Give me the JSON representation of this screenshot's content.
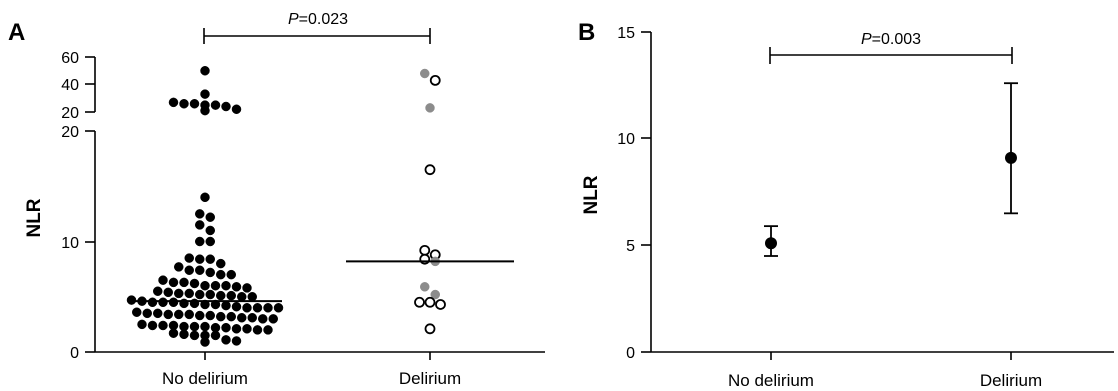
{
  "chart_data": [
    {
      "type": "scatter",
      "panel_label": "A",
      "ylabel": "NLR",
      "categories": [
        "No delirium",
        "Delirium"
      ],
      "y_segments": [
        {
          "ylim": [
            0,
            20
          ],
          "ticks": [
            0,
            10,
            20
          ]
        },
        {
          "ylim": [
            20,
            60
          ],
          "ticks": [
            20,
            40,
            60
          ]
        }
      ],
      "series": [
        {
          "category": "No delirium",
          "marker": "filled-black",
          "values": [
            50,
            33,
            27,
            26,
            26,
            25,
            25,
            24,
            22,
            21,
            14.0,
            12.5,
            12.2,
            11.5,
            11.0,
            10.0,
            10.0,
            8.5,
            8.4,
            8.4,
            8.0,
            7.7,
            7.4,
            7.4,
            7.2,
            7.0,
            7.0,
            6.5,
            6.3,
            6.3,
            6.2,
            6.0,
            6.0,
            6.0,
            5.9,
            5.8,
            5.5,
            5.4,
            5.3,
            5.3,
            5.2,
            5.2,
            5.1,
            5.1,
            5.0,
            5.0,
            4.7,
            4.6,
            4.5,
            4.5,
            4.5,
            4.4,
            4.4,
            4.3,
            4.3,
            4.2,
            4.1,
            4.0,
            4.0,
            4.0,
            4.0,
            3.6,
            3.5,
            3.5,
            3.4,
            3.4,
            3.4,
            3.3,
            3.3,
            3.2,
            3.2,
            3.1,
            3.1,
            3.0,
            3.0,
            2.5,
            2.4,
            2.4,
            2.4,
            2.3,
            2.3,
            2.3,
            2.2,
            2.2,
            2.1,
            2.1,
            2.0,
            2.0,
            1.7,
            1.6,
            1.5,
            1.5,
            1.5,
            1.1,
            1.0,
            0.9
          ]
        },
        {
          "category": "Delirium",
          "marker": "open-circle",
          "values": [
            43,
            16.5,
            8.8,
            9.2,
            8.4,
            4.5,
            4.5,
            4.3,
            2.1
          ]
        },
        {
          "category": "Delirium",
          "marker": "filled-gray",
          "values": [
            48,
            23,
            8.2,
            5.9,
            5.2
          ]
        }
      ],
      "medians": [
        4.6,
        8.2
      ],
      "comparison": {
        "label": "P=0.023",
        "p_italic": "P",
        "p_value": "=0.023",
        "between": [
          "No delirium",
          "Delirium"
        ]
      }
    },
    {
      "type": "scatter",
      "panel_label": "B",
      "ylabel": "NLR",
      "categories": [
        "No delirium",
        "Delirium"
      ],
      "ylim": [
        0,
        15
      ],
      "yticks": [
        0,
        5,
        10,
        15
      ],
      "points": [
        {
          "category": "No delirium",
          "mean": 5.1,
          "lower": 4.5,
          "upper": 5.9
        },
        {
          "category": "Delirium",
          "mean": 9.1,
          "lower": 6.5,
          "upper": 12.6
        }
      ],
      "comparison": {
        "label": "P=0.003",
        "p_italic": "P",
        "p_value": "=0.003",
        "between": [
          "No delirium",
          "Delirium"
        ]
      }
    }
  ]
}
